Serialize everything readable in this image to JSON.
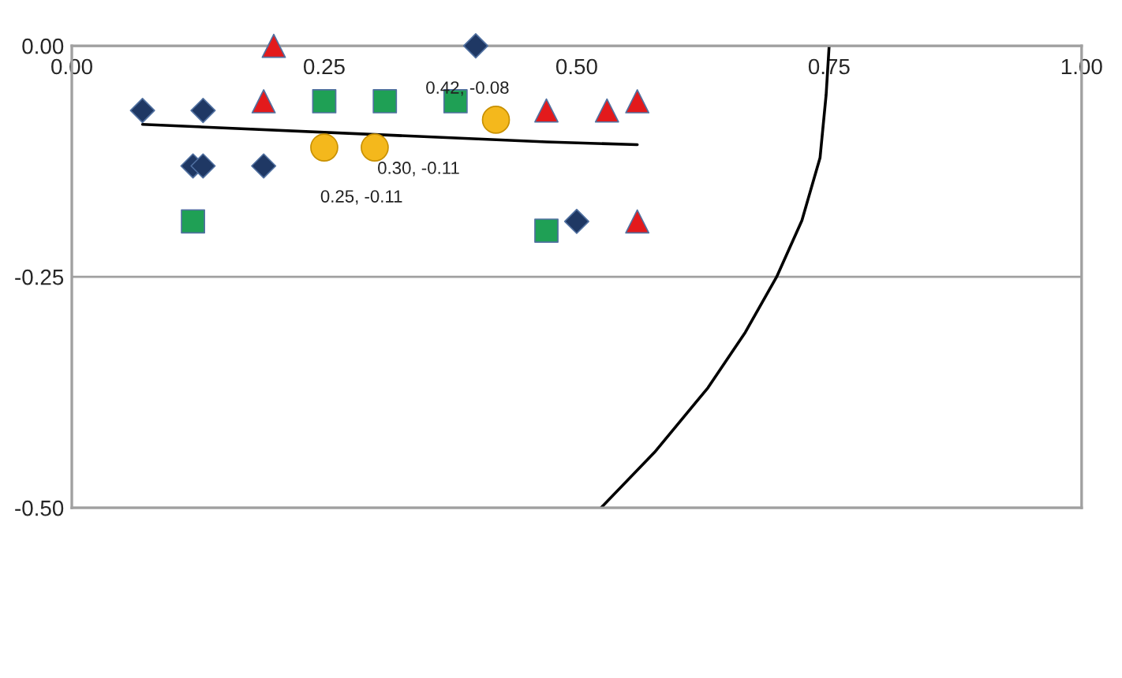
{
  "chart_data": {
    "type": "scatter",
    "xlim": [
      0,
      1
    ],
    "ylim": [
      -0.5,
      0
    ],
    "xticks": [
      {
        "value": 0,
        "label": "0.00"
      },
      0.25,
      {
        "value": 0.5,
        "label": "0.50"
      },
      0.75,
      {
        "value": 1,
        "label": "1.00"
      }
    ],
    "yticks": [
      {
        "value": 0,
        "label": "0.00"
      },
      -0.25,
      {
        "value": -0.5,
        "label": "-0.50"
      }
    ],
    "grid": "y",
    "legend": false,
    "series": [
      {
        "color": "#1f3864",
        "marker": "diamond",
        "x": [
          0.07,
          0.13,
          0.4,
          0.12,
          0.13,
          0.19,
          0.5
        ],
        "values": [
          -0.07,
          -0.07,
          0.0,
          -0.13,
          -0.13,
          -0.13,
          -0.19
        ]
      },
      {
        "color": "#e31a1c",
        "marker": "triangle",
        "x": [
          0.2,
          0.19,
          0.47,
          0.53,
          0.56,
          0.56
        ],
        "values": [
          0.0,
          -0.06,
          -0.07,
          -0.07,
          -0.06,
          -0.19
        ]
      },
      {
        "color": "#1fa055",
        "marker": "square",
        "x": [
          0.25,
          0.31,
          0.38,
          0.12,
          0.47
        ],
        "values": [
          -0.06,
          -0.06,
          -0.06,
          -0.19,
          -0.2
        ]
      },
      {
        "color": "#f4b81c",
        "marker": "circle",
        "x": [
          0.25,
          0.3,
          0.42
        ],
        "values": [
          -0.11,
          -0.11,
          -0.08
        ],
        "value_labels": [
          "0.25, -0.11",
          "0.30, -0.11",
          "0.42, -0.08"
        ]
      },
      {
        "type": "line",
        "color": "#000000",
        "marker": "none",
        "x": [
          0.07,
          0.47,
          0.56
        ],
        "values": [
          -0.085,
          -0.104,
          -0.107
        ]
      },
      {
        "type": "line",
        "color": "#000000",
        "marker": "none",
        "x": [
          0.75,
          0.747,
          0.741,
          0.723,
          0.698,
          0.667,
          0.63,
          0.577,
          0.524
        ],
        "values": [
          0.0,
          -0.053,
          -0.121,
          -0.189,
          -0.25,
          -0.31,
          -0.37,
          -0.44,
          -0.5
        ]
      }
    ]
  }
}
